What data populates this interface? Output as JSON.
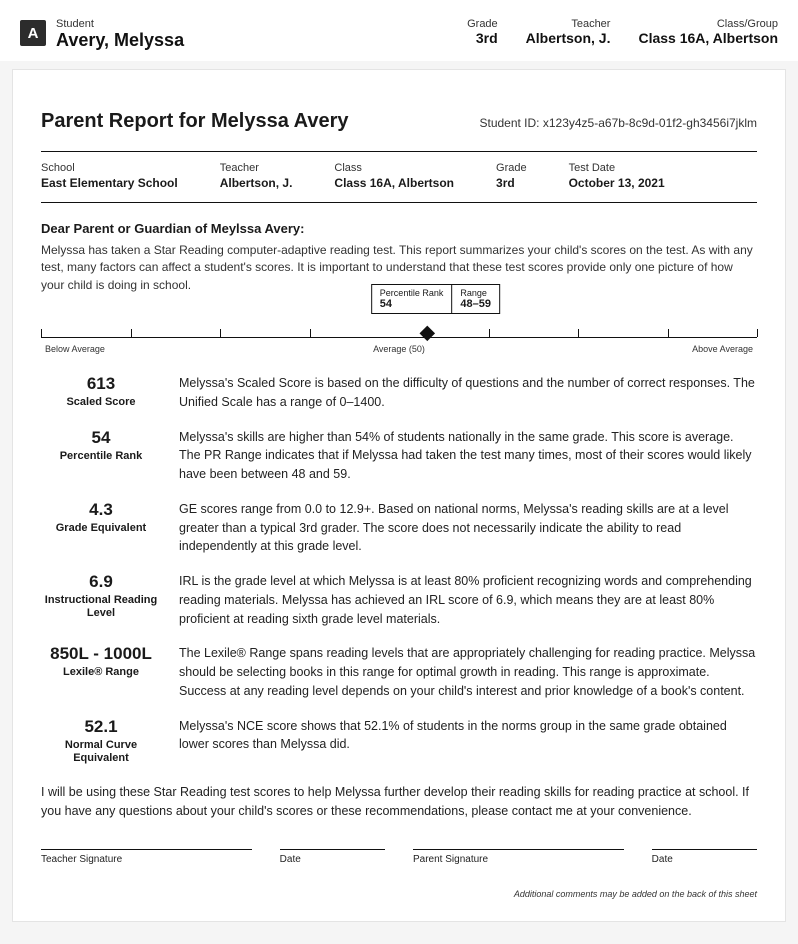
{
  "header": {
    "icon_letter": "A",
    "student_label": "Student",
    "student_name": "Avery, Melyssa",
    "cols": [
      {
        "label": "Grade",
        "value": "3rd"
      },
      {
        "label": "Teacher",
        "value": "Albertson, J."
      },
      {
        "label": "Class/Group",
        "value": "Class 16A, Albertson"
      }
    ]
  },
  "report": {
    "title": "Parent Report for Melyssa Avery",
    "student_id_label": "Student ID: x123y4z5-a67b-8c9d-01f2-gh3456i7jklm",
    "meta": [
      {
        "label": "School",
        "value": "East Elementary School"
      },
      {
        "label": "Teacher",
        "value": "Albertson, J."
      },
      {
        "label": "Class",
        "value": "Class 16A, Albertson"
      },
      {
        "label": "Grade",
        "value": "3rd"
      },
      {
        "label": "Test Date",
        "value": "October 13, 2021"
      }
    ],
    "greeting": "Dear Parent or Guardian of Meylssa Avery:",
    "intro": "Melyssa has taken a Star Reading computer-adaptive reading test. This report summarizes your child's scores on the test. As with any test, many factors can affect a student's scores. It is important to understand that these test scores provide only one picture of how your child is doing in school.",
    "scale": {
      "callout_pr_label": "Percentile Rank",
      "callout_pr_value": "54",
      "callout_range_label": "Range",
      "callout_range_value": "48–59",
      "below_label": "Below Average",
      "mid_label": "Average (50)",
      "above_label": "Above Average",
      "marker_percent": 54,
      "tick_positions": [
        0,
        12.5,
        25,
        37.5,
        62.5,
        75,
        87.5,
        100
      ]
    },
    "scores": [
      {
        "value": "613",
        "label": "Scaled Score",
        "text": "Melyssa's Scaled Score is based on the difficulty of questions and the number of correct responses. The Unified Scale has a range of 0–1400."
      },
      {
        "value": "54",
        "label": "Percentile Rank",
        "text": "Melyssa's skills are higher than 54% of students nationally in the same grade. This score is average. The PR Range indicates that if Melyssa had taken the test many times, most of their scores would likely have been between 48 and 59."
      },
      {
        "value": "4.3",
        "label": "Grade Equivalent",
        "text": "GE scores range from 0.0 to 12.9+. Based on national norms, Melyssa's reading skills are at a level greater than a typical 3rd grader. The score does not necessarily indicate the ability to read independently at this grade level."
      },
      {
        "value": "6.9",
        "label": "Instructional Reading Level",
        "text": "IRL is the grade level at which Melyssa is at least 80% proficient recognizing words and comprehending reading materials. Melyssa has achieved an IRL score of 6.9, which means they are at least 80% proficient at reading sixth grade level materials."
      },
      {
        "value": "850L - 1000L",
        "label": "Lexile® Range",
        "text": "The Lexile® Range spans reading levels that are appropriately challenging for reading practice. Melyssa should be selecting books in this range for optimal growth in reading. This range is approximate. Success at any reading level depends on your child's interest and prior knowledge of a book's content."
      },
      {
        "value": "52.1",
        "label": "Normal Curve Equivalent",
        "text": "Melyssa's NCE score shows that 52.1% of students in the norms group in the same grade obtained lower scores than Melyssa did."
      }
    ],
    "closing": "I will be using these Star Reading test scores to help Melyssa further develop their reading skills for reading practice at school. If you have any questions about your child's scores or these recommendations, please contact me at your convenience.",
    "signatures": {
      "teacher": "Teacher Signature",
      "date1": "Date",
      "parent": "Parent Signature",
      "date2": "Date"
    },
    "footnote": "Additional comments may be added on the back of this sheet"
  }
}
